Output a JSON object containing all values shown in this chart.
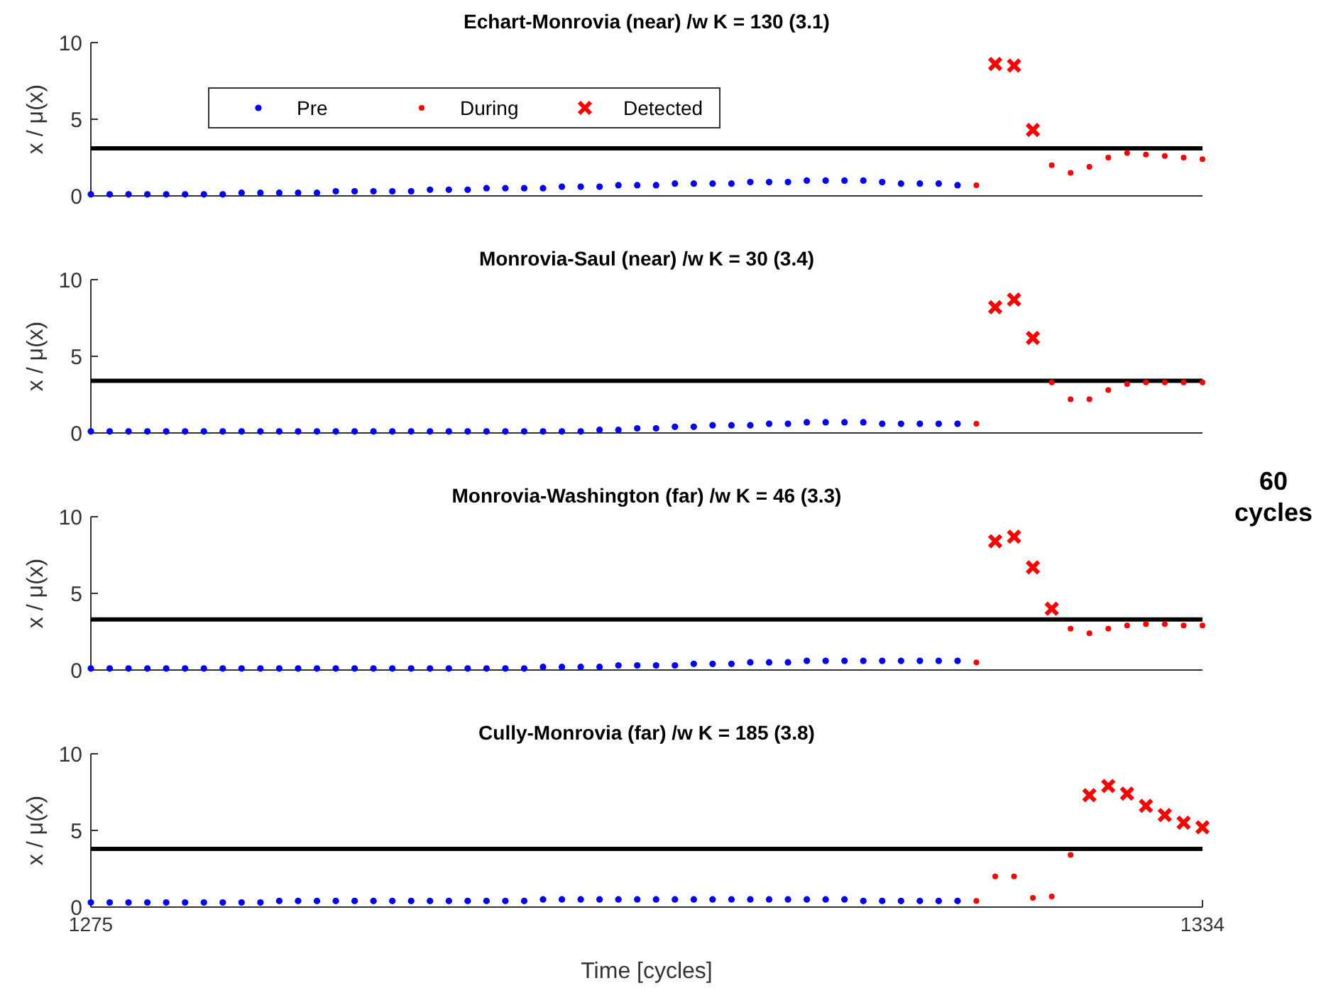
{
  "chart_data": [
    {
      "type": "scatter",
      "title": "Echart-Monrovia (near) /w K = 130 (3.1)",
      "ylabel": "x / $_{}$μ(x)",
      "xlim": [
        1275,
        1334
      ],
      "ylim": [
        0,
        10
      ],
      "yticks": [
        0,
        5,
        10
      ],
      "tick_labels": "y",
      "legend": "top left",
      "grid": false,
      "ref_lines": [
        {
          "axis": "y",
          "value": 3.1,
          "color": "#000000"
        }
      ],
      "series": [
        {
          "name": "Pre",
          "color": "#0000ff",
          "marker": "circle",
          "x": [
            1275,
            1276,
            1277,
            1278,
            1279,
            1280,
            1281,
            1282,
            1283,
            1284,
            1285,
            1286,
            1287,
            1288,
            1289,
            1290,
            1291,
            1292,
            1293,
            1294,
            1295,
            1296,
            1297,
            1298,
            1299,
            1300,
            1301,
            1302,
            1303,
            1304,
            1305,
            1306,
            1307,
            1308,
            1309,
            1310,
            1311,
            1312,
            1313,
            1314,
            1315,
            1316,
            1317,
            1318,
            1319,
            1320,
            1321
          ],
          "values": [
            0.1,
            0.1,
            0.1,
            0.1,
            0.1,
            0.1,
            0.1,
            0.1,
            0.2,
            0.2,
            0.2,
            0.2,
            0.2,
            0.3,
            0.3,
            0.3,
            0.3,
            0.3,
            0.4,
            0.4,
            0.4,
            0.5,
            0.5,
            0.5,
            0.5,
            0.6,
            0.6,
            0.6,
            0.7,
            0.7,
            0.7,
            0.8,
            0.8,
            0.8,
            0.8,
            0.9,
            0.9,
            0.9,
            1.0,
            1.0,
            1.0,
            1.0,
            0.9,
            0.8,
            0.8,
            0.8,
            0.7
          ]
        },
        {
          "name": "During",
          "color": "#ff0000",
          "marker": "circle",
          "x": [
            1322,
            1326,
            1327,
            1328,
            1329,
            1330,
            1331,
            1332,
            1333,
            1334
          ],
          "values": [
            0.7,
            2.0,
            1.5,
            1.9,
            2.5,
            2.8,
            2.7,
            2.6,
            2.5,
            2.4
          ]
        },
        {
          "name": "Detected",
          "color": "#ff0000",
          "marker": "cross",
          "x": [
            1323,
            1324,
            1325
          ],
          "values": [
            8.6,
            8.5,
            4.3
          ]
        }
      ]
    },
    {
      "type": "scatter",
      "title": "Monrovia-Saul (near) /w K = 30 (3.4)",
      "ylabel": "x / $_{}$μ(x)",
      "xlim": [
        1275,
        1334
      ],
      "ylim": [
        0,
        10
      ],
      "yticks": [
        0,
        5,
        10
      ],
      "tick_labels": "y",
      "grid": false,
      "annotations": [
        "60 cycles"
      ],
      "ref_lines": [
        {
          "axis": "y",
          "value": 3.4,
          "color": "#000000"
        }
      ],
      "series": [
        {
          "color": "#0000ff",
          "marker": "circle",
          "x": [
            1275,
            1276,
            1277,
            1278,
            1279,
            1280,
            1281,
            1282,
            1283,
            1284,
            1285,
            1286,
            1287,
            1288,
            1289,
            1290,
            1291,
            1292,
            1293,
            1294,
            1295,
            1296,
            1297,
            1298,
            1299,
            1300,
            1301,
            1302,
            1303,
            1304,
            1305,
            1306,
            1307,
            1308,
            1309,
            1310,
            1311,
            1312,
            1313,
            1314,
            1315,
            1316,
            1317,
            1318,
            1319,
            1320,
            1321
          ],
          "values": [
            0.1,
            0.1,
            0.1,
            0.1,
            0.1,
            0.1,
            0.1,
            0.1,
            0.1,
            0.1,
            0.1,
            0.1,
            0.1,
            0.1,
            0.1,
            0.1,
            0.1,
            0.1,
            0.1,
            0.1,
            0.1,
            0.1,
            0.1,
            0.1,
            0.1,
            0.1,
            0.1,
            0.2,
            0.2,
            0.3,
            0.3,
            0.4,
            0.4,
            0.5,
            0.5,
            0.5,
            0.6,
            0.6,
            0.7,
            0.7,
            0.7,
            0.7,
            0.6,
            0.6,
            0.6,
            0.6,
            0.6
          ]
        },
        {
          "color": "#ff0000",
          "marker": "circle",
          "x": [
            1322,
            1326,
            1327,
            1328,
            1329,
            1330,
            1331,
            1332,
            1333,
            1334
          ],
          "values": [
            0.6,
            3.3,
            2.2,
            2.2,
            2.8,
            3.2,
            3.3,
            3.3,
            3.3,
            3.3
          ]
        },
        {
          "color": "#ff0000",
          "marker": "cross",
          "x": [
            1323,
            1324,
            1325
          ],
          "values": [
            8.2,
            8.7,
            6.2
          ]
        }
      ]
    },
    {
      "type": "scatter",
      "title": "Monrovia-Washington (far) /w K = 46 (3.3)",
      "ylabel": "x / $_{}$μ(x)",
      "xlim": [
        1275,
        1334
      ],
      "ylim": [
        0,
        10
      ],
      "yticks": [
        0,
        5,
        10
      ],
      "tick_labels": "y",
      "grid": false,
      "ref_lines": [
        {
          "axis": "y",
          "value": 3.3,
          "color": "#000000"
        }
      ],
      "series": [
        {
          "color": "#0000ff",
          "marker": "circle",
          "x": [
            1275,
            1276,
            1277,
            1278,
            1279,
            1280,
            1281,
            1282,
            1283,
            1284,
            1285,
            1286,
            1287,
            1288,
            1289,
            1290,
            1291,
            1292,
            1293,
            1294,
            1295,
            1296,
            1297,
            1298,
            1299,
            1300,
            1301,
            1302,
            1303,
            1304,
            1305,
            1306,
            1307,
            1308,
            1309,
            1310,
            1311,
            1312,
            1313,
            1314,
            1315,
            1316,
            1317,
            1318,
            1319,
            1320,
            1321
          ],
          "values": [
            0.1,
            0.1,
            0.1,
            0.1,
            0.1,
            0.1,
            0.1,
            0.1,
            0.1,
            0.1,
            0.1,
            0.1,
            0.1,
            0.1,
            0.1,
            0.1,
            0.1,
            0.1,
            0.1,
            0.1,
            0.1,
            0.1,
            0.1,
            0.1,
            0.2,
            0.2,
            0.2,
            0.2,
            0.3,
            0.3,
            0.3,
            0.3,
            0.4,
            0.4,
            0.4,
            0.5,
            0.5,
            0.5,
            0.6,
            0.6,
            0.6,
            0.6,
            0.6,
            0.6,
            0.6,
            0.6,
            0.6
          ]
        },
        {
          "color": "#ff0000",
          "marker": "circle",
          "x": [
            1322,
            1327,
            1328,
            1329,
            1330,
            1331,
            1332,
            1333,
            1334
          ],
          "values": [
            0.5,
            2.7,
            2.4,
            2.7,
            2.9,
            3.0,
            3.0,
            2.9,
            2.9
          ]
        },
        {
          "color": "#ff0000",
          "marker": "cross",
          "x": [
            1323,
            1324,
            1325,
            1326
          ],
          "values": [
            8.4,
            8.7,
            6.7,
            4.0
          ]
        }
      ]
    },
    {
      "type": "scatter",
      "title": "Cully-Monrovia (far) /w K = 185 (3.8)",
      "ylabel": "x / $_{}$μ(x)",
      "xlabel": "Time [cycles]",
      "xlim": [
        1275,
        1334
      ],
      "xticks": [
        1275,
        1334
      ],
      "ylim": [
        0,
        10
      ],
      "yticks": [
        0,
        5,
        10
      ],
      "grid": false,
      "ref_lines": [
        {
          "axis": "y",
          "value": 3.8,
          "color": "#000000"
        }
      ],
      "series": [
        {
          "color": "#0000ff",
          "marker": "circle",
          "x": [
            1275,
            1276,
            1277,
            1278,
            1279,
            1280,
            1281,
            1282,
            1283,
            1284,
            1285,
            1286,
            1287,
            1288,
            1289,
            1290,
            1291,
            1292,
            1293,
            1294,
            1295,
            1296,
            1297,
            1298,
            1299,
            1300,
            1301,
            1302,
            1303,
            1304,
            1305,
            1306,
            1307,
            1308,
            1309,
            1310,
            1311,
            1312,
            1313,
            1314,
            1315,
            1316,
            1317,
            1318,
            1319,
            1320,
            1321
          ],
          "values": [
            0.3,
            0.3,
            0.3,
            0.3,
            0.3,
            0.3,
            0.3,
            0.3,
            0.3,
            0.3,
            0.4,
            0.4,
            0.4,
            0.4,
            0.4,
            0.4,
            0.4,
            0.4,
            0.4,
            0.4,
            0.4,
            0.4,
            0.4,
            0.4,
            0.5,
            0.5,
            0.5,
            0.5,
            0.5,
            0.5,
            0.5,
            0.5,
            0.5,
            0.5,
            0.5,
            0.5,
            0.5,
            0.5,
            0.5,
            0.5,
            0.5,
            0.4,
            0.4,
            0.4,
            0.4,
            0.4,
            0.4
          ]
        },
        {
          "color": "#ff0000",
          "marker": "circle",
          "x": [
            1322,
            1323,
            1324,
            1325,
            1326,
            1327
          ],
          "values": [
            0.4,
            2.0,
            2.0,
            0.6,
            0.7,
            3.4
          ]
        },
        {
          "color": "#ff0000",
          "marker": "cross",
          "x": [
            1328,
            1329,
            1330,
            1331,
            1332,
            1333,
            1334
          ],
          "values": [
            7.3,
            7.9,
            7.4,
            6.6,
            6.0,
            5.5,
            5.2
          ]
        }
      ]
    }
  ]
}
